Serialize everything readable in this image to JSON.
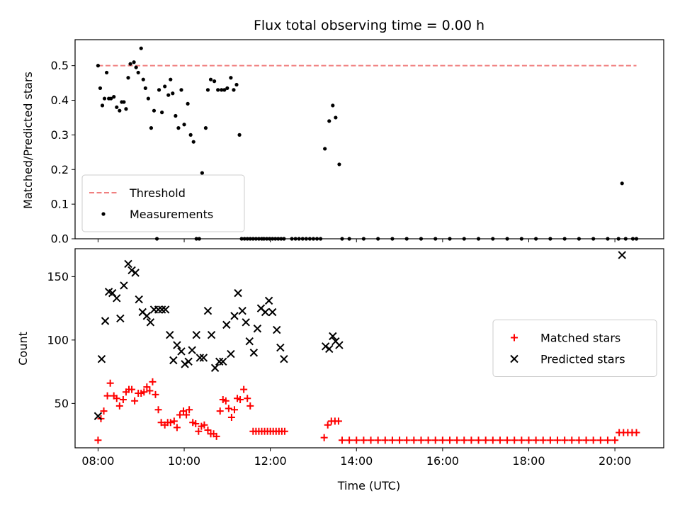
{
  "chart_data": [
    {
      "type": "scatter",
      "title": "Flux total observing time = 0.00 h",
      "xlabel": "",
      "ylabel": "Matched/Predicted stars",
      "xlim": [
        "07:28",
        "21:08"
      ],
      "ylim": [
        0,
        0.575
      ],
      "xtick_labels": [
        "08:00",
        "10:00",
        "12:00",
        "14:00",
        "16:00",
        "18:00",
        "20:00"
      ],
      "yticks": [
        0.0,
        0.1,
        0.2,
        0.3,
        0.4,
        0.5
      ],
      "ytick_labels": [
        "0.0",
        "0.1",
        "0.2",
        "0.3",
        "0.4",
        "0.5"
      ],
      "legend_position": "lower-left",
      "series": [
        {
          "name": "Threshold",
          "style": "dashed-line",
          "color": "#f08080",
          "x": [
            "08:00",
            "20:30"
          ],
          "y": [
            0.5,
            0.5
          ]
        },
        {
          "name": "Measurements",
          "style": "dot",
          "color": "#000000",
          "x": [
            "08:00",
            "08:03",
            "08:06",
            "08:09",
            "08:12",
            "08:15",
            "08:18",
            "08:22",
            "08:26",
            "08:30",
            "08:33",
            "08:36",
            "08:39",
            "08:42",
            "08:45",
            "08:50",
            "08:53",
            "08:56",
            "09:00",
            "09:03",
            "09:06",
            "09:10",
            "09:14",
            "09:18",
            "09:22",
            "09:25",
            "09:29",
            "09:33",
            "09:38",
            "09:41",
            "09:44",
            "09:48",
            "09:52",
            "09:56",
            "10:00",
            "10:05",
            "10:09",
            "10:13",
            "10:17",
            "10:21",
            "10:25",
            "10:30",
            "10:33",
            "10:37",
            "10:42",
            "10:47",
            "10:52",
            "10:56",
            "11:00",
            "11:05",
            "11:09",
            "11:13",
            "11:17",
            "11:20",
            "11:24",
            "11:28",
            "11:32",
            "11:36",
            "11:40",
            "11:44",
            "11:48",
            "11:51",
            "11:55",
            "11:59",
            "12:03",
            "12:07",
            "12:11",
            "12:15",
            "12:19",
            "13:16",
            "13:22",
            "13:27",
            "13:31",
            "13:36",
            "13:40",
            "20:10"
          ],
          "y": [
            0.5,
            0.435,
            0.385,
            0.405,
            0.48,
            0.405,
            0.405,
            0.41,
            0.38,
            0.37,
            0.395,
            0.395,
            0.375,
            0.465,
            0.505,
            0.51,
            0.495,
            0.48,
            0.55,
            0.46,
            0.435,
            0.405,
            0.32,
            0.37,
            0.0,
            0.43,
            0.365,
            0.44,
            0.415,
            0.46,
            0.42,
            0.355,
            0.32,
            0.43,
            0.33,
            0.39,
            0.3,
            0.28,
            0.0,
            0.0,
            0.19,
            0.32,
            0.43,
            0.46,
            0.455,
            0.43,
            0.43,
            0.43,
            0.435,
            0.465,
            0.43,
            0.445,
            0.3,
            0.0,
            0.0,
            0.0,
            0.0,
            0.0,
            0.0,
            0.0,
            0.0,
            0.0,
            0.0,
            0.0,
            0.0,
            0.0,
            0.0,
            0.0,
            0.0,
            0.26,
            0.34,
            0.385,
            0.35,
            0.215,
            0.0,
            0.16
          ]
        },
        {
          "name": "",
          "style": "dot",
          "color": "#000000",
          "x": [
            "12:30",
            "12:35",
            "12:40",
            "12:45",
            "12:50",
            "12:55",
            "13:00",
            "13:05",
            "13:10",
            "13:50",
            "14:10",
            "14:30",
            "14:50",
            "15:10",
            "15:30",
            "15:50",
            "16:10",
            "16:30",
            "16:50",
            "17:10",
            "17:30",
            "17:50",
            "18:10",
            "18:30",
            "18:50",
            "19:10",
            "19:30",
            "19:50",
            "20:05",
            "20:15",
            "20:25",
            "20:30"
          ],
          "y": [
            0,
            0,
            0,
            0,
            0,
            0,
            0,
            0,
            0,
            0,
            0,
            0,
            0,
            0,
            0,
            0,
            0,
            0,
            0,
            0,
            0,
            0,
            0,
            0,
            0,
            0,
            0,
            0,
            0,
            0,
            0,
            0
          ]
        }
      ]
    },
    {
      "type": "scatter",
      "title": "",
      "xlabel": "Time (UTC)",
      "ylabel": "Count",
      "xlim": [
        "07:28",
        "21:08"
      ],
      "ylim": [
        15,
        172
      ],
      "xtick_labels": [
        "08:00",
        "10:00",
        "12:00",
        "14:00",
        "16:00",
        "18:00",
        "20:00"
      ],
      "yticks": [
        50,
        100,
        150
      ],
      "ytick_labels": [
        "50",
        "100",
        "150"
      ],
      "legend_position": "center-right",
      "series": [
        {
          "name": "Matched stars",
          "style": "plus",
          "color": "#ff0000",
          "x": [
            "08:00",
            "08:04",
            "08:08",
            "08:13",
            "08:17",
            "08:22",
            "08:26",
            "08:30",
            "08:35",
            "08:39",
            "08:43",
            "08:47",
            "08:51",
            "08:56",
            "09:00",
            "09:04",
            "09:08",
            "09:12",
            "09:16",
            "09:20",
            "09:24",
            "09:28",
            "09:33",
            "09:37",
            "09:41",
            "09:46",
            "09:50",
            "09:54",
            "09:59",
            "10:03",
            "10:07",
            "10:12",
            "10:16",
            "10:20",
            "10:24",
            "10:28",
            "10:33",
            "10:37",
            "10:41",
            "10:45",
            "10:50",
            "10:54",
            "10:58",
            "11:02",
            "11:06",
            "11:10",
            "11:14",
            "11:18",
            "11:23",
            "11:28",
            "11:32",
            "11:36",
            "11:40",
            "11:44",
            "11:48",
            "11:52",
            "11:56",
            "12:00",
            "12:04",
            "12:08",
            "12:12",
            "12:16",
            "12:20",
            "13:15",
            "13:20",
            "13:25",
            "13:30",
            "13:35"
          ],
          "y": [
            21,
            38,
            44,
            56,
            66,
            56,
            54,
            48,
            53,
            59,
            61,
            61,
            52,
            58,
            58,
            59,
            63,
            60,
            67,
            57,
            45,
            35,
            33,
            35,
            35,
            36,
            31,
            41,
            44,
            41,
            45,
            35,
            34,
            28,
            32,
            33,
            29,
            26,
            26,
            24,
            44,
            53,
            52,
            46,
            39,
            45,
            54,
            53,
            61,
            54,
            48,
            28,
            28,
            28,
            28,
            28,
            28,
            28,
            28,
            28,
            28,
            28,
            28,
            23,
            33,
            36,
            36,
            36
          ]
        },
        {
          "name": "",
          "style": "plus",
          "color": "#ff0000",
          "x": [
            "13:40",
            "13:50",
            "14:00",
            "14:10",
            "14:20",
            "14:30",
            "14:40",
            "14:50",
            "15:00",
            "15:10",
            "15:20",
            "15:30",
            "15:40",
            "15:50",
            "16:00",
            "16:10",
            "16:20",
            "16:30",
            "16:40",
            "16:50",
            "17:00",
            "17:10",
            "17:20",
            "17:30",
            "17:40",
            "17:50",
            "18:00",
            "18:10",
            "18:20",
            "18:30",
            "18:40",
            "18:50",
            "19:00",
            "19:10",
            "19:20",
            "19:30",
            "19:40",
            "19:50",
            "20:00",
            "20:06",
            "20:12",
            "20:18",
            "20:24",
            "20:30"
          ],
          "y": [
            21,
            21,
            21,
            21,
            21,
            21,
            21,
            21,
            21,
            21,
            21,
            21,
            21,
            21,
            21,
            21,
            21,
            21,
            21,
            21,
            21,
            21,
            21,
            21,
            21,
            21,
            21,
            21,
            21,
            21,
            21,
            21,
            21,
            21,
            21,
            21,
            21,
            21,
            21,
            27,
            27,
            27,
            27,
            27
          ]
        },
        {
          "name": "Predicted stars",
          "style": "x",
          "color": "#000000",
          "x": [
            "08:00",
            "08:05",
            "08:10",
            "08:15",
            "08:20",
            "08:26",
            "08:31",
            "08:36",
            "08:42",
            "08:47",
            "08:52",
            "08:57",
            "09:02",
            "09:08",
            "09:13",
            "09:18",
            "09:24",
            "09:29",
            "09:34",
            "09:40",
            "09:45",
            "09:50",
            "09:56",
            "10:01",
            "10:06",
            "10:11",
            "10:17",
            "10:22",
            "10:27",
            "10:33",
            "10:38",
            "10:43",
            "10:49",
            "10:54",
            "10:59",
            "11:05",
            "11:10",
            "11:15",
            "11:21",
            "11:26",
            "11:31",
            "11:37",
            "11:42",
            "11:47",
            "11:53",
            "11:58",
            "12:03",
            "12:09",
            "12:14",
            "12:19",
            "13:17",
            "13:22",
            "13:27",
            "13:31",
            "13:36",
            "20:10"
          ],
          "y": [
            40,
            85,
            115,
            138,
            137,
            133,
            117,
            143,
            160,
            155,
            153,
            132,
            122,
            119,
            114,
            124,
            124,
            124,
            124,
            104,
            84,
            96,
            91,
            81,
            83,
            92,
            104,
            86,
            86,
            123,
            104,
            78,
            83,
            83,
            112,
            89,
            119,
            137,
            123,
            114,
            99,
            90,
            109,
            125,
            122,
            131,
            122,
            108,
            94,
            85,
            95,
            93,
            103,
            99,
            96,
            167
          ]
        }
      ]
    }
  ]
}
